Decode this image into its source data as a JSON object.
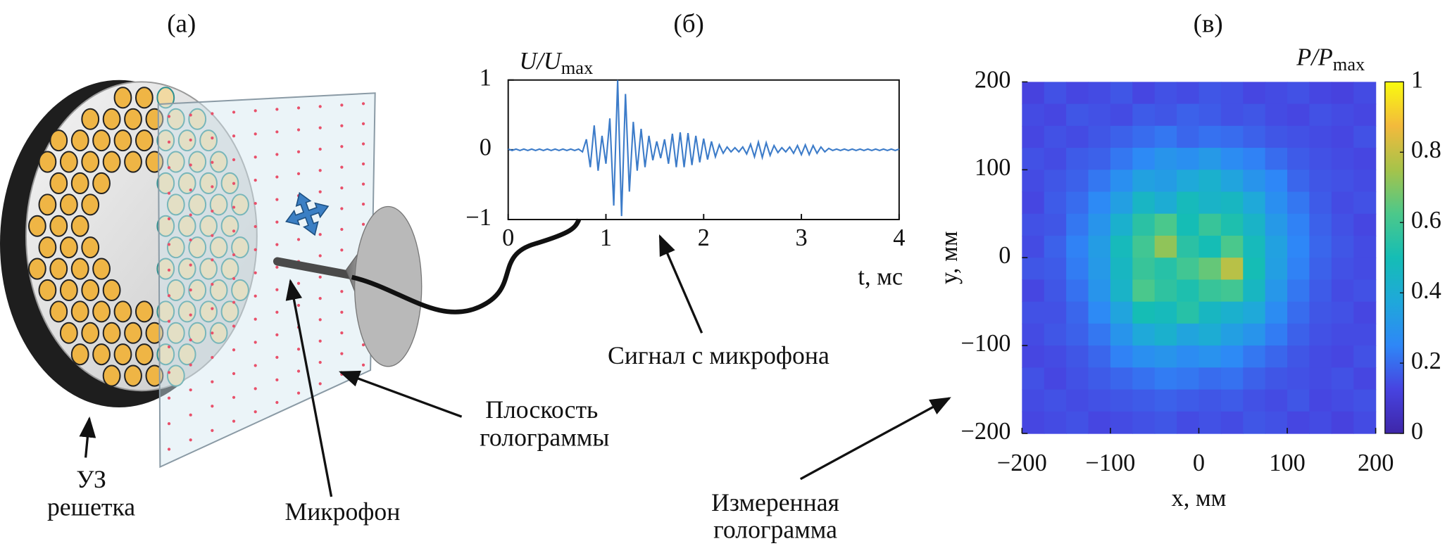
{
  "panel_labels": [
    "(а)",
    "(б)",
    "(в)"
  ],
  "annotations": [
    "УЗ",
    "решетка",
    "Микрофон",
    "Плоскость",
    "голограммы",
    "Сигнал с микрофона",
    "Измеренная",
    "голограмма"
  ],
  "chart_data": [
    {
      "type": "line",
      "ylabel": {
        "main": "U/U",
        "sub": "max"
      },
      "xlabel": "t, мс",
      "color": "#3d7cc9",
      "xlim": [
        0,
        4
      ],
      "xticks": [
        0,
        1,
        2,
        3,
        4
      ],
      "ylim": [
        -1,
        1
      ],
      "yticks": [
        {
          "value": -1,
          "label": "−1"
        },
        0,
        1
      ],
      "x": [
        0,
        0.04,
        0.08,
        0.12,
        0.16,
        0.2,
        0.24,
        0.28,
        0.32,
        0.36,
        0.4,
        0.44,
        0.48,
        0.52,
        0.56,
        0.6,
        0.64,
        0.68,
        0.72,
        0.76,
        0.8,
        0.84,
        0.88,
        0.92,
        0.96,
        1,
        1.04,
        1.08,
        1.12,
        1.16,
        1.2,
        1.24,
        1.28,
        1.32,
        1.36,
        1.4,
        1.44,
        1.48,
        1.52,
        1.56,
        1.6,
        1.64,
        1.68,
        1.72,
        1.76,
        1.8,
        1.84,
        1.88,
        1.92,
        1.96,
        2,
        2.04,
        2.08,
        2.12,
        2.16,
        2.2,
        2.24,
        2.28,
        2.32,
        2.36,
        2.4,
        2.44,
        2.48,
        2.52,
        2.56,
        2.6,
        2.64,
        2.68,
        2.72,
        2.76,
        2.8,
        2.84,
        2.88,
        2.92,
        2.96,
        3,
        3.04,
        3.08,
        3.12,
        3.16,
        3.2,
        3.24,
        3.28,
        3.32,
        3.36,
        3.4,
        3.44,
        3.48,
        3.52,
        3.56,
        3.6,
        3.64,
        3.68,
        3.72,
        3.76,
        3.8,
        3.84,
        3.88,
        3.92,
        3.96,
        4
      ],
      "values": [
        0.01,
        -0.01,
        0.01,
        -0.01,
        0.01,
        -0.01,
        0.01,
        -0.01,
        0.01,
        -0.01,
        0.01,
        -0.01,
        0.01,
        -0.01,
        0.01,
        -0.01,
        0.01,
        -0.01,
        0.01,
        -0.03,
        0.15,
        -0.25,
        0.35,
        -0.3,
        0.2,
        -0.2,
        0.45,
        -0.8,
        1,
        -0.95,
        0.8,
        -0.6,
        0.4,
        -0.3,
        0.3,
        -0.25,
        0.2,
        -0.15,
        0.12,
        -0.12,
        0.15,
        -0.2,
        0.23,
        -0.25,
        0.25,
        -0.25,
        0.24,
        -0.22,
        0.2,
        -0.18,
        0.16,
        -0.14,
        0.12,
        -0.1,
        0.07,
        -0.05,
        0.04,
        -0.03,
        0.03,
        -0.03,
        0.04,
        -0.06,
        0.08,
        -0.1,
        0.11,
        -0.11,
        0.1,
        -0.08,
        0.06,
        -0.04,
        0.03,
        -0.03,
        0.04,
        -0.05,
        0.06,
        -0.07,
        0.07,
        -0.07,
        0.06,
        -0.05,
        0.04,
        -0.03,
        0.02,
        -0.01,
        0.01,
        -0.01,
        0.01,
        -0.01,
        0.01,
        -0.01,
        0.01,
        -0.01,
        0.01,
        -0.01,
        0.01,
        -0.01,
        0.01,
        -0.01,
        0.01,
        -0.01,
        0.01
      ]
    },
    {
      "type": "heatmap",
      "xlabel": "x, мм",
      "ylabel": "y, мм",
      "clabel": {
        "main": "P/P",
        "sub": "max"
      },
      "xlim": [
        -200,
        200
      ],
      "xticks": [
        {
          "value": -200,
          "label": "−200"
        },
        {
          "value": -100,
          "label": "−100"
        },
        0,
        100,
        200
      ],
      "ylim": [
        -200,
        200
      ],
      "yticks": [
        {
          "value": -200,
          "label": "−200"
        },
        {
          "value": -100,
          "label": "−100"
        },
        0,
        100,
        200
      ],
      "clim": [
        0,
        1
      ],
      "cticks": [
        0,
        0.2,
        0.4,
        0.6,
        0.8,
        1
      ],
      "colormap": [
        "#3e26a8",
        "#4743e0",
        "#2e87f7",
        "#1fa8da",
        "#15bdb5",
        "#4cc88a",
        "#a6c34a",
        "#f3ba3c",
        "#f9fb0e"
      ],
      "z": [
        [
          0.12,
          0.15,
          0.13,
          0.14,
          0.16,
          0.13,
          0.15,
          0.14,
          0.16,
          0.15,
          0.13,
          0.14,
          0.15,
          0.13,
          0.12,
          0.14
        ],
        [
          0.14,
          0.13,
          0.16,
          0.15,
          0.14,
          0.17,
          0.16,
          0.18,
          0.17,
          0.15,
          0.16,
          0.14,
          0.13,
          0.15,
          0.14,
          0.13
        ],
        [
          0.13,
          0.15,
          0.14,
          0.16,
          0.18,
          0.2,
          0.22,
          0.19,
          0.21,
          0.2,
          0.18,
          0.16,
          0.15,
          0.14,
          0.13,
          0.15
        ],
        [
          0.15,
          0.14,
          0.17,
          0.18,
          0.22,
          0.26,
          0.3,
          0.28,
          0.32,
          0.27,
          0.24,
          0.2,
          0.17,
          0.15,
          0.14,
          0.13
        ],
        [
          0.14,
          0.16,
          0.18,
          0.22,
          0.28,
          0.35,
          0.33,
          0.38,
          0.42,
          0.36,
          0.3,
          0.25,
          0.19,
          0.16,
          0.15,
          0.14
        ],
        [
          0.13,
          0.17,
          0.2,
          0.26,
          0.34,
          0.45,
          0.4,
          0.48,
          0.44,
          0.46,
          0.38,
          0.28,
          0.22,
          0.17,
          0.14,
          0.15
        ],
        [
          0.15,
          0.16,
          0.22,
          0.3,
          0.42,
          0.55,
          0.62,
          0.5,
          0.58,
          0.52,
          0.44,
          0.32,
          0.24,
          0.18,
          0.15,
          0.13
        ],
        [
          0.14,
          0.18,
          0.24,
          0.33,
          0.48,
          0.6,
          0.72,
          0.55,
          0.5,
          0.62,
          0.48,
          0.35,
          0.25,
          0.19,
          0.16,
          0.14
        ],
        [
          0.16,
          0.17,
          0.23,
          0.32,
          0.46,
          0.58,
          0.54,
          0.6,
          0.66,
          0.78,
          0.5,
          0.34,
          0.24,
          0.18,
          0.15,
          0.14
        ],
        [
          0.13,
          0.16,
          0.21,
          0.3,
          0.44,
          0.62,
          0.56,
          0.52,
          0.58,
          0.6,
          0.46,
          0.31,
          0.22,
          0.17,
          0.14,
          0.15
        ],
        [
          0.15,
          0.15,
          0.19,
          0.26,
          0.36,
          0.5,
          0.48,
          0.54,
          0.46,
          0.42,
          0.38,
          0.27,
          0.2,
          0.16,
          0.15,
          0.13
        ],
        [
          0.14,
          0.16,
          0.18,
          0.22,
          0.3,
          0.38,
          0.42,
          0.36,
          0.4,
          0.34,
          0.3,
          0.23,
          0.18,
          0.15,
          0.14,
          0.14
        ],
        [
          0.13,
          0.14,
          0.16,
          0.19,
          0.24,
          0.28,
          0.3,
          0.27,
          0.29,
          0.26,
          0.22,
          0.19,
          0.16,
          0.14,
          0.13,
          0.15
        ],
        [
          0.15,
          0.13,
          0.15,
          0.17,
          0.19,
          0.21,
          0.23,
          0.22,
          0.2,
          0.21,
          0.18,
          0.16,
          0.15,
          0.14,
          0.15,
          0.13
        ],
        [
          0.14,
          0.15,
          0.14,
          0.15,
          0.16,
          0.17,
          0.18,
          0.17,
          0.16,
          0.17,
          0.15,
          0.14,
          0.16,
          0.13,
          0.14,
          0.15
        ],
        [
          0.13,
          0.14,
          0.15,
          0.13,
          0.14,
          0.15,
          0.16,
          0.14,
          0.15,
          0.14,
          0.16,
          0.15,
          0.13,
          0.14,
          0.12,
          0.14
        ]
      ]
    }
  ]
}
